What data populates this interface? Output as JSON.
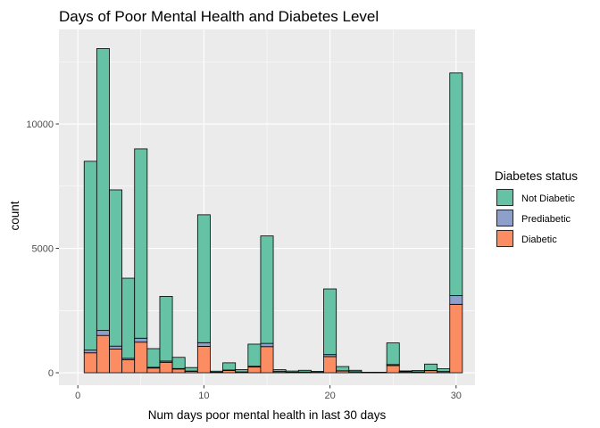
{
  "chart_data": {
    "type": "bar",
    "stacked": true,
    "title": "Days of Poor Mental Health and Diabetes Level",
    "xlabel": "Num days poor mental health in last 30 days",
    "ylabel": "count",
    "xlim": [
      -1.5,
      31.5
    ],
    "ylim": [
      -500,
      13800
    ],
    "x_ticks": [
      0,
      10,
      20,
      30
    ],
    "y_ticks": [
      0,
      5000,
      10000
    ],
    "grid": true,
    "legend": {
      "title": "Diabetes status",
      "position": "right"
    },
    "bar_width": 1,
    "x": [
      1,
      2,
      3,
      4,
      5,
      6,
      7,
      8,
      9,
      10,
      11,
      12,
      13,
      14,
      15,
      16,
      17,
      18,
      19,
      20,
      21,
      22,
      23,
      24,
      25,
      26,
      27,
      28,
      29,
      30
    ],
    "series": [
      {
        "name": "Diabetic",
        "color": "#FC8D62",
        "values": [
          800,
          1500,
          950,
          520,
          1230,
          190,
          420,
          150,
          60,
          1060,
          20,
          95,
          30,
          230,
          1050,
          45,
          20,
          25,
          15,
          650,
          70,
          35,
          8,
          8,
          290,
          40,
          30,
          85,
          45,
          2750
        ]
      },
      {
        "name": "Prediabetic",
        "color": "#8DA0CB",
        "values": [
          110,
          200,
          120,
          60,
          160,
          30,
          50,
          20,
          10,
          150,
          5,
          15,
          5,
          30,
          130,
          8,
          5,
          5,
          3,
          80,
          10,
          5,
          2,
          2,
          40,
          5,
          5,
          10,
          5,
          350
        ]
      },
      {
        "name": "Not Diabetic",
        "color": "#66C2A5",
        "values": [
          7590,
          11330,
          6280,
          3220,
          7610,
          750,
          2600,
          450,
          140,
          5140,
          40,
          290,
          90,
          890,
          4320,
          70,
          45,
          70,
          40,
          2640,
          170,
          60,
          10,
          10,
          870,
          30,
          55,
          255,
          110,
          8950
        ]
      }
    ]
  }
}
